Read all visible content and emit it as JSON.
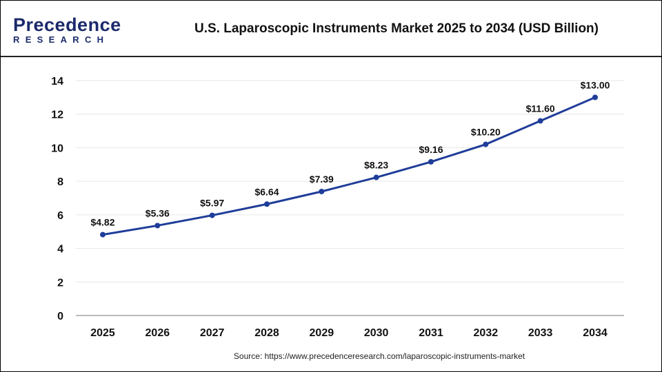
{
  "header": {
    "logo_text_top": "Precedence",
    "logo_text_bottom": "RESEARCH",
    "title": "U.S. Laparoscopic Instruments Market 2025 to 2034 (USD Billion)"
  },
  "source": "Source: https://www.precedenceresearch.com/laparoscopic-instruments-market",
  "chart_data": {
    "type": "line",
    "title": "U.S. Laparoscopic Instruments Market 2025 to 2034 (USD Billion)",
    "categories": [
      "2025",
      "2026",
      "2027",
      "2028",
      "2029",
      "2030",
      "2031",
      "2032",
      "2033",
      "2034"
    ],
    "values": [
      4.82,
      5.36,
      5.97,
      6.64,
      7.39,
      8.23,
      9.16,
      10.2,
      11.6,
      13.0
    ],
    "data_labels": [
      "$4.82",
      "$5.36",
      "$5.97",
      "$6.64",
      "$7.39",
      "$8.23",
      "$9.16",
      "$10.20",
      "$11.60",
      "$13.00"
    ],
    "yticks": [
      0,
      2,
      4,
      6,
      8,
      10,
      12,
      14
    ],
    "ylim": [
      0,
      14
    ],
    "grid": true,
    "line_color": "#1f3d99"
  }
}
